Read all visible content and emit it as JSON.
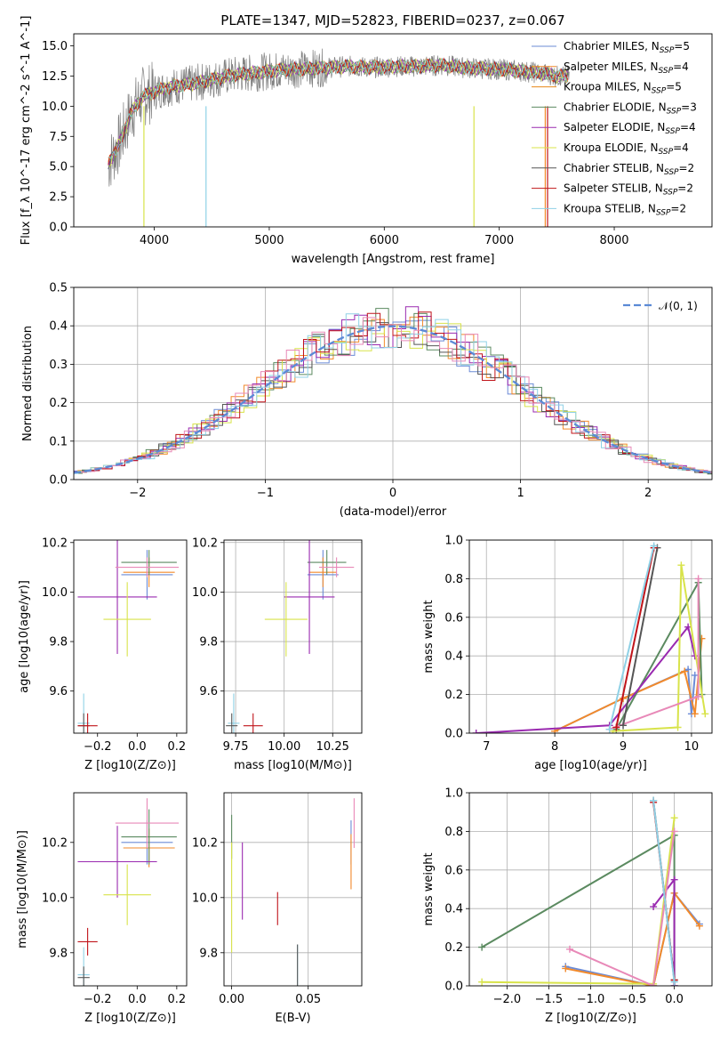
{
  "title": "PLATE=1347, MJD=52823, FIBERID=0237, z=0.067",
  "colors": [
    "#6b8bd6",
    "#f28a2b",
    "#e88a1a",
    "#5b8a60",
    "#9a2ab0",
    "#d8e34a",
    "#555555",
    "#c0141a",
    "#8fd1e6",
    "#e889b8",
    "#7ed6dc"
  ],
  "chart_data": [
    {
      "type": "line",
      "panel": "spectrum",
      "title": "PLATE=1347, MJD=52823, FIBERID=0237, z=0.067",
      "xlabel": "wavelength [Angstrom, rest frame]",
      "ylabel": "Flux [f_λ 10^-17 erg cm^-2 s^-1 A^-1]",
      "xlim": [
        3300,
        8850
      ],
      "ylim": [
        0,
        16
      ],
      "xticks": [
        "4000",
        "5000",
        "6000",
        "7000",
        "8000"
      ],
      "yticks": [
        "0.0",
        "2.5",
        "5.0",
        "7.5",
        "10.0",
        "12.5",
        "15.0"
      ],
      "legend": [
        "Chabrier MILES, N_SSP=5",
        "Salpeter MILES, N_SSP=4",
        "Kroupa MILES, N_SSP=5",
        "Chabrier ELODIE, N_SSP=3",
        "Salpeter ELODIE, N_SSP=4",
        "Kroupa ELODIE, N_SSP=4",
        "Chabrier STELIB, N_SSP=2",
        "Salpeter STELIB, N_SSP=2",
        "Kroupa STELIB, N_SSP=2"
      ],
      "legend_loc": "upper right",
      "model_continuum": {
        "x": [
          3600,
          3700,
          3800,
          3900,
          4000,
          4100,
          4200,
          4300,
          4500,
          4700,
          4900,
          5100,
          5300,
          5500,
          5700,
          5900,
          6100,
          6300,
          6500,
          6700,
          6900,
          7100,
          7300,
          7400,
          7500,
          7600
        ],
        "y": [
          5.2,
          7.0,
          9.5,
          10.8,
          11.2,
          11.5,
          11.7,
          11.8,
          12.2,
          12.6,
          12.8,
          13.0,
          13.1,
          13.2,
          13.3,
          13.2,
          13.3,
          13.3,
          13.4,
          13.2,
          13.1,
          13.0,
          12.8,
          12.7,
          12.5,
          12.5
        ]
      }
    },
    {
      "type": "line",
      "panel": "residual-histogram",
      "xlabel": "(data-model)/error",
      "ylabel": "Normed distribution",
      "xlim": [
        -2.5,
        2.5
      ],
      "ylim": [
        0,
        0.5
      ],
      "xticks": [
        "−2",
        "−1",
        "0",
        "1",
        "2"
      ],
      "yticks": [
        "0.0",
        "0.1",
        "0.2",
        "0.3",
        "0.4",
        "0.5"
      ],
      "legend": [
        "𝒩(0, 1)"
      ],
      "legend_loc": "upper right",
      "gaussian": {
        "mu": 0,
        "sigma": 1
      }
    },
    {
      "type": "scatter",
      "panel": "age-vs-Z",
      "xlabel": "Z [log10(Z/Z⊙)]",
      "ylabel": "age [log10(age/yr)]",
      "xlim": [
        -0.32,
        0.25
      ],
      "ylim": [
        9.43,
        10.21
      ],
      "xticks": [
        "−0.2",
        "0.0",
        "0.2"
      ],
      "yticks": [
        "9.6",
        "9.8",
        "10.0",
        "10.2"
      ],
      "points": [
        {
          "x": 0.05,
          "xerr": 0.13,
          "y": 10.07,
          "yerr": 0.1,
          "color": "#6b8bd6"
        },
        {
          "x": 0.06,
          "xerr": 0.13,
          "y": 10.08,
          "yerr": 0.06,
          "color": "#f28a2b"
        },
        {
          "x": 0.06,
          "xerr": 0.14,
          "y": 10.12,
          "yerr": 0.05,
          "color": "#5b8a60"
        },
        {
          "x": -0.1,
          "xerr": 0.2,
          "y": 9.98,
          "yerr": 0.23,
          "color": "#9a2ab0"
        },
        {
          "x": -0.05,
          "xerr": 0.12,
          "y": 9.89,
          "yerr": 0.15,
          "color": "#d8e34a"
        },
        {
          "x": 0.05,
          "xerr": 0.16,
          "y": 10.1,
          "yerr": 0.04,
          "color": "#e889b8"
        },
        {
          "x": -0.27,
          "xerr": 0.03,
          "y": 9.47,
          "yerr": 0.12,
          "color": "#8fd1e6"
        },
        {
          "x": -0.27,
          "xerr": 0.03,
          "y": 9.46,
          "yerr": 0.05,
          "color": "#555555"
        },
        {
          "x": -0.25,
          "xerr": 0.05,
          "y": 9.46,
          "yerr": 0.05,
          "color": "#c0141a"
        }
      ]
    },
    {
      "type": "scatter",
      "panel": "age-vs-mass",
      "xlabel": "mass [log10(M/M⊙)]",
      "ylabel": "",
      "xlim": [
        9.69,
        10.4
      ],
      "ylim": [
        9.43,
        10.21
      ],
      "xticks": [
        "9.75",
        "10.00",
        "10.25"
      ],
      "yticks": [
        "9.6",
        "9.8",
        "10.0",
        "10.2"
      ],
      "points": [
        {
          "x": 10.2,
          "xerr": 0.08,
          "y": 10.07,
          "yerr": 0.1,
          "color": "#6b8bd6"
        },
        {
          "x": 10.2,
          "xerr": 0.07,
          "y": 10.08,
          "yerr": 0.06,
          "color": "#f28a2b"
        },
        {
          "x": 10.22,
          "xerr": 0.1,
          "y": 10.12,
          "yerr": 0.05,
          "color": "#5b8a60"
        },
        {
          "x": 10.13,
          "xerr": 0.13,
          "y": 9.98,
          "yerr": 0.23,
          "color": "#9a2ab0"
        },
        {
          "x": 10.01,
          "xerr": 0.11,
          "y": 9.89,
          "yerr": 0.15,
          "color": "#d8e34a"
        },
        {
          "x": 10.27,
          "xerr": 0.09,
          "y": 10.1,
          "yerr": 0.04,
          "color": "#e889b8"
        },
        {
          "x": 9.74,
          "xerr": 0.03,
          "y": 9.47,
          "yerr": 0.12,
          "color": "#8fd1e6"
        },
        {
          "x": 9.73,
          "xerr": 0.03,
          "y": 9.46,
          "yerr": 0.05,
          "color": "#555555"
        },
        {
          "x": 9.84,
          "xerr": 0.05,
          "y": 9.46,
          "yerr": 0.05,
          "color": "#c0141a"
        }
      ]
    },
    {
      "type": "line",
      "panel": "mass-weight-vs-age",
      "xlabel": "age [log10(age/yr)]",
      "ylabel": "mass weight",
      "xlim": [
        6.75,
        10.3
      ],
      "ylim": [
        0,
        1.0
      ],
      "xticks": [
        "7",
        "8",
        "9",
        "10"
      ],
      "yticks": [
        "0.0",
        "0.2",
        "0.4",
        "0.6",
        "0.8",
        "1.0"
      ],
      "series": [
        {
          "color": "#6b8bd6",
          "x": [
            8.0,
            9.0,
            9.95,
            10.0,
            10.05
          ],
          "y": [
            0.01,
            0.18,
            0.33,
            0.1,
            0.3
          ]
        },
        {
          "color": "#f28a2b",
          "x": [
            8.0,
            9.0,
            9.9,
            10.05,
            10.15
          ],
          "y": [
            0.01,
            0.18,
            0.32,
            0.1,
            0.49
          ]
        },
        {
          "color": "#5b8a60",
          "x": [
            8.9,
            10.1,
            10.15
          ],
          "y": [
            0.02,
            0.78,
            0.2
          ]
        },
        {
          "color": "#9a2ab0",
          "x": [
            6.85,
            8.8,
            9.95,
            10.05
          ],
          "y": [
            0.0,
            0.04,
            0.55,
            0.4
          ]
        },
        {
          "color": "#d8e34a",
          "x": [
            8.85,
            9.8,
            9.85,
            10.2
          ],
          "y": [
            0.01,
            0.03,
            0.87,
            0.1
          ]
        },
        {
          "color": "#e889b8",
          "x": [
            8.8,
            10.1,
            10.1
          ],
          "y": [
            0.02,
            0.19,
            0.8
          ]
        },
        {
          "color": "#555555",
          "x": [
            9.0,
            9.5
          ],
          "y": [
            0.04,
            0.96
          ]
        },
        {
          "color": "#c0141a",
          "x": [
            8.9,
            9.45
          ],
          "y": [
            0.03,
            0.96
          ]
        },
        {
          "color": "#8fd1e6",
          "x": [
            8.8,
            9.45
          ],
          "y": [
            0.02,
            0.97
          ]
        }
      ]
    },
    {
      "type": "scatter",
      "panel": "mass-vs-Z",
      "xlabel": "Z [log10(Z/Z⊙)]",
      "ylabel": "mass [log10(M/M⊙)]",
      "xlim": [
        -0.32,
        0.25
      ],
      "ylim": [
        9.68,
        10.38
      ],
      "xticks": [
        "−0.2",
        "0.0",
        "0.2"
      ],
      "yticks": [
        "9.8",
        "10.0",
        "10.2"
      ],
      "points": [
        {
          "x": 0.05,
          "xerr": 0.13,
          "y": 10.2,
          "yerr": 0.08,
          "color": "#6b8bd6"
        },
        {
          "x": 0.06,
          "xerr": 0.13,
          "y": 10.18,
          "yerr": 0.07,
          "color": "#f28a2b"
        },
        {
          "x": 0.06,
          "xerr": 0.14,
          "y": 10.22,
          "yerr": 0.1,
          "color": "#5b8a60"
        },
        {
          "x": -0.1,
          "xerr": 0.2,
          "y": 10.13,
          "yerr": 0.13,
          "color": "#9a2ab0"
        },
        {
          "x": -0.05,
          "xerr": 0.12,
          "y": 10.01,
          "yerr": 0.11,
          "color": "#d8e34a"
        },
        {
          "x": 0.05,
          "xerr": 0.16,
          "y": 10.27,
          "yerr": 0.09,
          "color": "#e889b8"
        },
        {
          "x": -0.27,
          "xerr": 0.03,
          "y": 9.72,
          "yerr": 0.1,
          "color": "#8fd1e6"
        },
        {
          "x": -0.27,
          "xerr": 0.03,
          "y": 9.71,
          "yerr": 0.04,
          "color": "#555555"
        },
        {
          "x": -0.25,
          "xerr": 0.05,
          "y": 9.84,
          "yerr": 0.05,
          "color": "#c0141a"
        }
      ]
    },
    {
      "type": "scatter",
      "panel": "mass-vs-EBV",
      "xlabel": "E(B-V)",
      "ylabel": "",
      "xlim": [
        -0.005,
        0.085
      ],
      "ylim": [
        9.68,
        10.38
      ],
      "xticks": [
        "0.00",
        "0.05"
      ],
      "yticks": [
        "9.8",
        "10.0",
        "10.2"
      ],
      "points": [
        {
          "x": 0.078,
          "y": 10.2,
          "yerr": 0.08,
          "color": "#6b8bd6"
        },
        {
          "x": 0.078,
          "y": 10.13,
          "yerr": 0.1,
          "color": "#f28a2b"
        },
        {
          "x": 0.0,
          "y": 10.22,
          "yerr": 0.08,
          "color": "#5b8a60"
        },
        {
          "x": 0.007,
          "y": 10.06,
          "yerr": 0.14,
          "color": "#9a2ab0"
        },
        {
          "x": 0.0,
          "y": 10.0,
          "yerr": 0.2,
          "color": "#d8e34a"
        },
        {
          "x": 0.08,
          "y": 10.27,
          "yerr": 0.09,
          "color": "#e889b8"
        },
        {
          "x": 0.043,
          "y": 9.75,
          "yerr": 0.08,
          "color": "#8fd1e6"
        },
        {
          "x": 0.043,
          "y": 9.75,
          "yerr": 0.08,
          "color": "#555555"
        },
        {
          "x": 0.03,
          "y": 9.96,
          "yerr": 0.06,
          "color": "#c0141a"
        }
      ]
    },
    {
      "type": "line",
      "panel": "mass-weight-vs-Z",
      "xlabel": "Z [log10(Z/Z⊙)]",
      "ylabel": "mass weight",
      "xlim": [
        -2.45,
        0.45
      ],
      "ylim": [
        0,
        1.0
      ],
      "xticks": [
        "−2.0",
        "−1.5",
        "−1.0",
        "−0.5",
        "0.0"
      ],
      "yticks": [
        "0.0",
        "0.2",
        "0.4",
        "0.6",
        "0.8",
        "1.0"
      ],
      "series": [
        {
          "color": "#6b8bd6",
          "x": [
            -1.3,
            -0.25,
            0.0,
            0.3
          ],
          "y": [
            0.1,
            0.0,
            0.48,
            0.32
          ]
        },
        {
          "color": "#f28a2b",
          "x": [
            -1.3,
            -0.25,
            0.0,
            0.3
          ],
          "y": [
            0.09,
            0.0,
            0.48,
            0.31
          ]
        },
        {
          "color": "#5b8a60",
          "x": [
            -2.3,
            0.0,
            0.0
          ],
          "y": [
            0.2,
            0.78,
            0.0
          ]
        },
        {
          "color": "#9a2ab0",
          "x": [
            -0.25,
            0.0,
            0.0
          ],
          "y": [
            0.41,
            0.55,
            0.0
          ]
        },
        {
          "color": "#d8e34a",
          "x": [
            -2.3,
            -0.25,
            0.0
          ],
          "y": [
            0.02,
            0.01,
            0.87
          ]
        },
        {
          "color": "#e889b8",
          "x": [
            -1.25,
            -0.25,
            0.0
          ],
          "y": [
            0.19,
            0.0,
            0.8
          ]
        },
        {
          "color": "#555555",
          "x": [
            -0.25,
            0.0
          ],
          "y": [
            0.96,
            0.03
          ]
        },
        {
          "color": "#c0141a",
          "x": [
            -0.25,
            0.0
          ],
          "y": [
            0.95,
            0.03
          ]
        },
        {
          "color": "#8fd1e6",
          "x": [
            -0.25,
            0.0
          ],
          "y": [
            0.96,
            0.02
          ]
        }
      ]
    }
  ]
}
